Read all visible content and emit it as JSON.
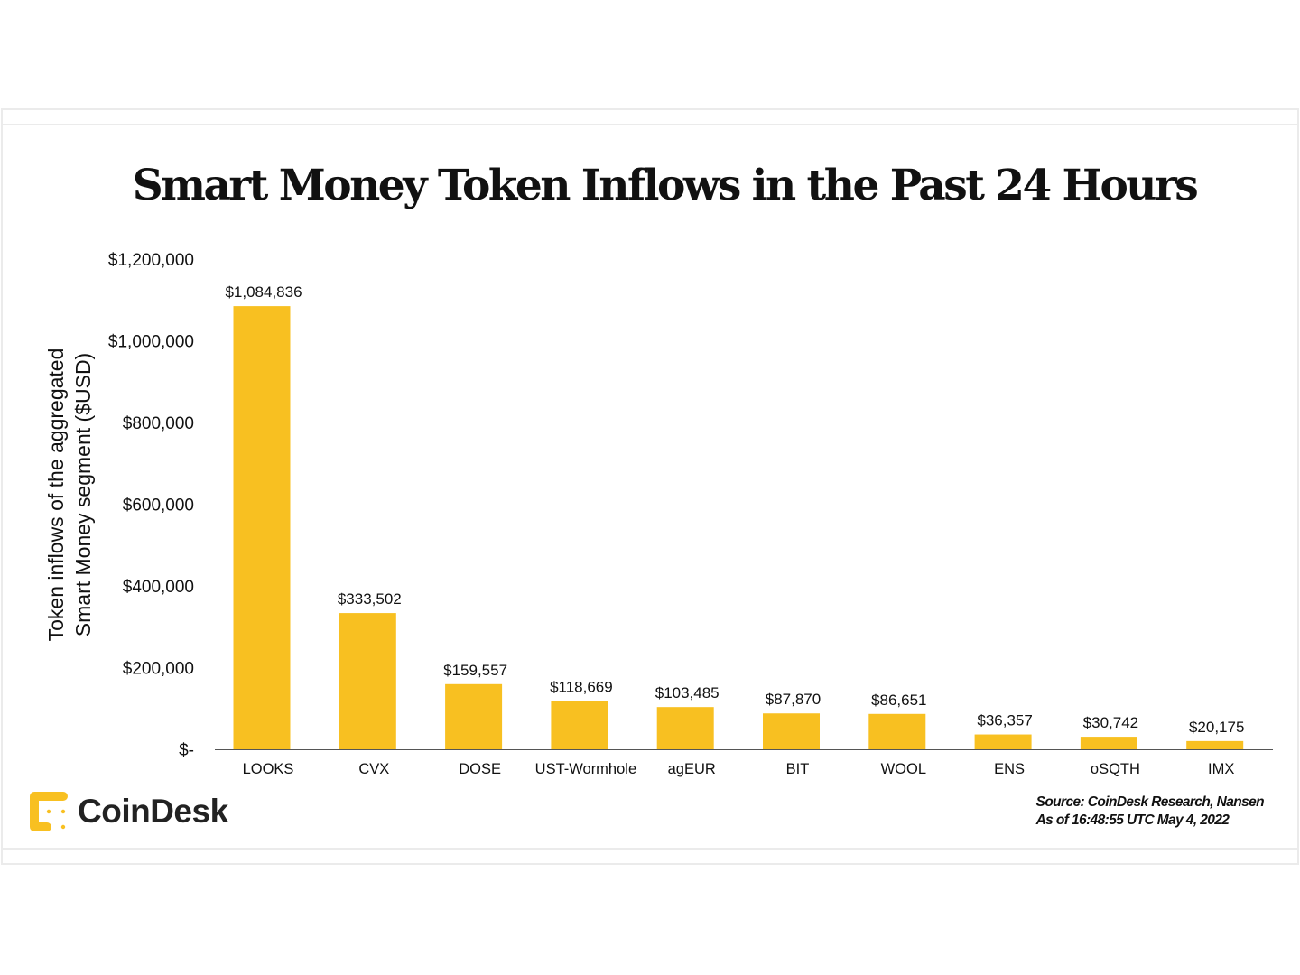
{
  "brand": {
    "name": "CoinDesk",
    "accent": "#f8c021"
  },
  "source": {
    "line1": "Source: CoinDesk Research, Nansen",
    "line2": "As of 16:48:55 UTC May 4, 2022"
  },
  "chart_data": {
    "type": "bar",
    "title": "Smart Money Token Inflows in the Past 24 Hours",
    "ylabel_lines": [
      "Token inflows of the aggregated",
      "Smart Money segment ($USD)"
    ],
    "xlabel": "",
    "categories": [
      "LOOKS",
      "CVX",
      "DOSE",
      "UST-Wormhole",
      "agEUR",
      "BIT",
      "WOOL",
      "ENS",
      "oSQTH",
      "IMX"
    ],
    "values": [
      1084836,
      333502,
      159557,
      118669,
      103485,
      87870,
      86651,
      36357,
      30742,
      20175
    ],
    "data_labels": [
      "$1,084,836",
      "$333,502",
      "$159,557",
      "$118,669",
      "$103,485",
      "$87,870",
      "$86,651",
      "$36,357",
      "$30,742",
      "$20,175"
    ],
    "ylim": [
      0,
      1200000
    ],
    "yticks": [
      0,
      200000,
      400000,
      600000,
      800000,
      1000000,
      1200000
    ],
    "ytick_labels": [
      "$-",
      "$200,000",
      "$400,000",
      "$600,000",
      "$800,000",
      "$1,000,000",
      "$1,200,000"
    ],
    "grid": false,
    "bar_color": "#f8c021"
  }
}
